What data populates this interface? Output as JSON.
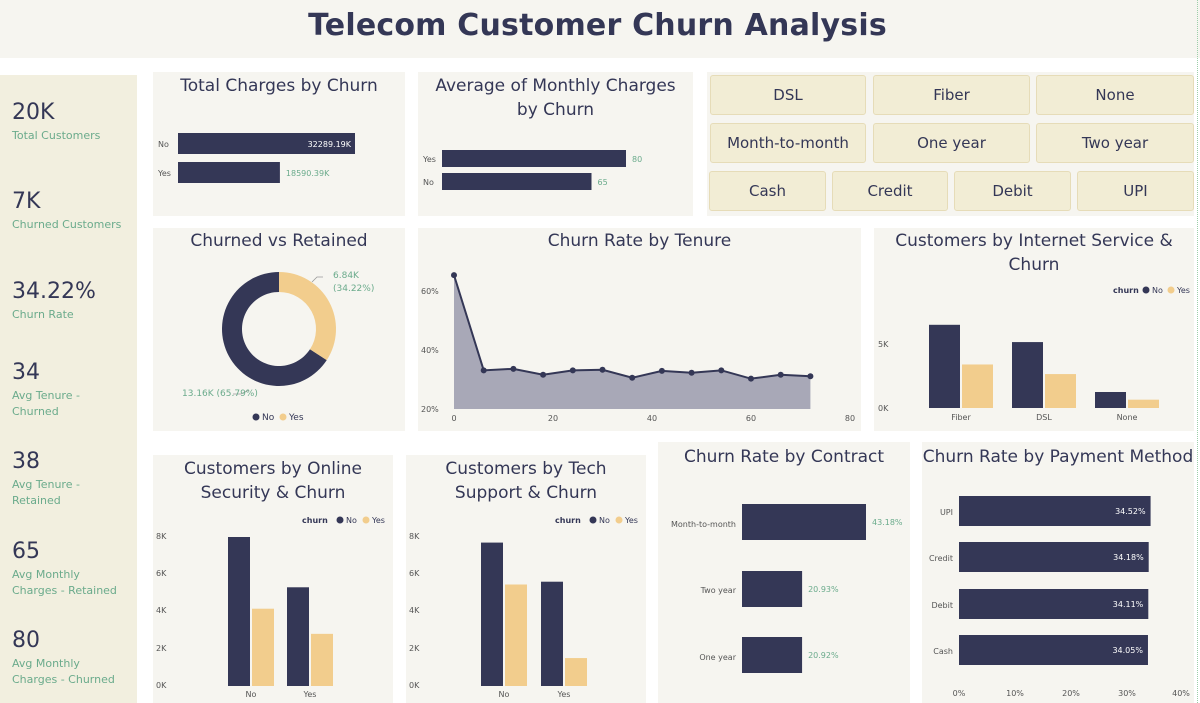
{
  "title": "Telecom Customer Churn Analysis",
  "colors": {
    "no": "#343756",
    "yes": "#f2cd8d",
    "accent_text": "#6bab8c",
    "panel_bg": "#f6f5f0",
    "side_bg": "#f2efdf"
  },
  "kpis": [
    {
      "value": "20K",
      "label": "Total Customers"
    },
    {
      "value": "7K",
      "label": "Churned Customers"
    },
    {
      "value": "34.22%",
      "label": "Churn Rate"
    },
    {
      "value": "34",
      "label": "Avg Tenure - Churned"
    },
    {
      "value": "38",
      "label": "Avg Tenure - Retained"
    },
    {
      "value": "65",
      "label": "Avg Monthly Charges - Retained"
    },
    {
      "value": "80",
      "label": "Avg Monthly Charges - Churned"
    }
  ],
  "slicers": {
    "internet": [
      "DSL",
      "Fiber",
      "None"
    ],
    "contract": [
      "Month-to-month",
      "One year",
      "Two year"
    ],
    "payment": [
      "Cash",
      "Credit",
      "Debit",
      "UPI"
    ]
  },
  "legend": {
    "title": "churn",
    "no": "No",
    "yes": "Yes"
  },
  "charts": {
    "total_charges": {
      "title": "Total Charges by Churn",
      "chart_data": {
        "type": "bar",
        "orientation": "horizontal",
        "categories": [
          "No",
          "Yes"
        ],
        "values": [
          32289.19,
          18590.39
        ],
        "unit": "K",
        "labels": [
          "32289.19K",
          "18590.39K"
        ]
      }
    },
    "avg_monthly": {
      "title": "Average of Monthly Charges by Churn",
      "chart_data": {
        "type": "bar",
        "orientation": "horizontal",
        "categories": [
          "Yes",
          "No"
        ],
        "values": [
          80,
          65
        ],
        "labels": [
          "80",
          "65"
        ]
      }
    },
    "churned_retained": {
      "title": "Churned vs Retained",
      "chart_data": {
        "type": "pie",
        "donut": true,
        "categories": [
          "No",
          "Yes"
        ],
        "values": [
          13160,
          6840
        ],
        "label_no_1": "13.16K (65.79%)",
        "label_yes_1": "6.84K",
        "label_yes_2": "(34.22%)"
      }
    },
    "tenure": {
      "title": "Churn Rate by Tenure",
      "chart_data": {
        "type": "area",
        "x": [
          0,
          6,
          12,
          18,
          24,
          30,
          36,
          42,
          48,
          54,
          60,
          66,
          72
        ],
        "y": [
          65,
          33,
          33.5,
          31.5,
          33,
          33.2,
          30.5,
          32.8,
          32.2,
          33,
          30.2,
          31.5,
          31
        ],
        "xlim": [
          0,
          80
        ],
        "ylim": [
          20,
          65
        ],
        "xticks": [
          "0",
          "20",
          "40",
          "60",
          "80"
        ],
        "yticks": [
          "20%",
          "40%",
          "60%"
        ]
      }
    },
    "internet": {
      "title": "Customers by Internet Service & Churn",
      "chart_data": {
        "type": "bar",
        "categories": [
          "Fiber",
          "DSL",
          "None"
        ],
        "series": [
          {
            "name": "No",
            "values": [
              6500,
              5150,
              1250
            ]
          },
          {
            "name": "Yes",
            "values": [
              3400,
              2650,
              650
            ]
          }
        ],
        "ylim": [
          0,
          7500
        ],
        "yticks": [
          "0K",
          "5K"
        ]
      }
    },
    "online_security": {
      "title": "Customers by Online Security & Churn",
      "chart_data": {
        "type": "bar",
        "categories": [
          "No",
          "Yes"
        ],
        "series": [
          {
            "name": "No",
            "values": [
              8000,
              5300
            ]
          },
          {
            "name": "Yes",
            "values": [
              4150,
              2800
            ]
          }
        ],
        "ylim": [
          0,
          8000
        ],
        "yticks": [
          "0K",
          "2K",
          "4K",
          "6K",
          "8K"
        ]
      }
    },
    "tech_support": {
      "title": "Customers by Tech Support & Churn",
      "chart_data": {
        "type": "bar",
        "categories": [
          "No",
          "Yes"
        ],
        "series": [
          {
            "name": "No",
            "values": [
              7700,
              5600
            ]
          },
          {
            "name": "Yes",
            "values": [
              5450,
              1500
            ]
          }
        ],
        "ylim": [
          0,
          8000
        ],
        "yticks": [
          "0K",
          "2K",
          "4K",
          "6K",
          "8K"
        ]
      }
    },
    "contract": {
      "title": "Churn Rate by Contract",
      "chart_data": {
        "type": "bar",
        "orientation": "horizontal",
        "categories": [
          "Month-to-month",
          "Two year",
          "One year"
        ],
        "values": [
          43.18,
          20.93,
          20.92
        ],
        "labels": [
          "43.18%",
          "20.93%",
          "20.92%"
        ]
      }
    },
    "payment": {
      "title": "Churn Rate by Payment Method",
      "chart_data": {
        "type": "bar",
        "orientation": "horizontal",
        "categories": [
          "UPI",
          "Credit",
          "Debit",
          "Cash"
        ],
        "values": [
          34.52,
          34.18,
          34.11,
          34.05
        ],
        "labels": [
          "34.52%",
          "34.18%",
          "34.11%",
          "34.05%"
        ],
        "xlim": [
          0,
          40
        ],
        "xticks": [
          "0%",
          "10%",
          "20%",
          "30%",
          "40%"
        ]
      }
    }
  }
}
